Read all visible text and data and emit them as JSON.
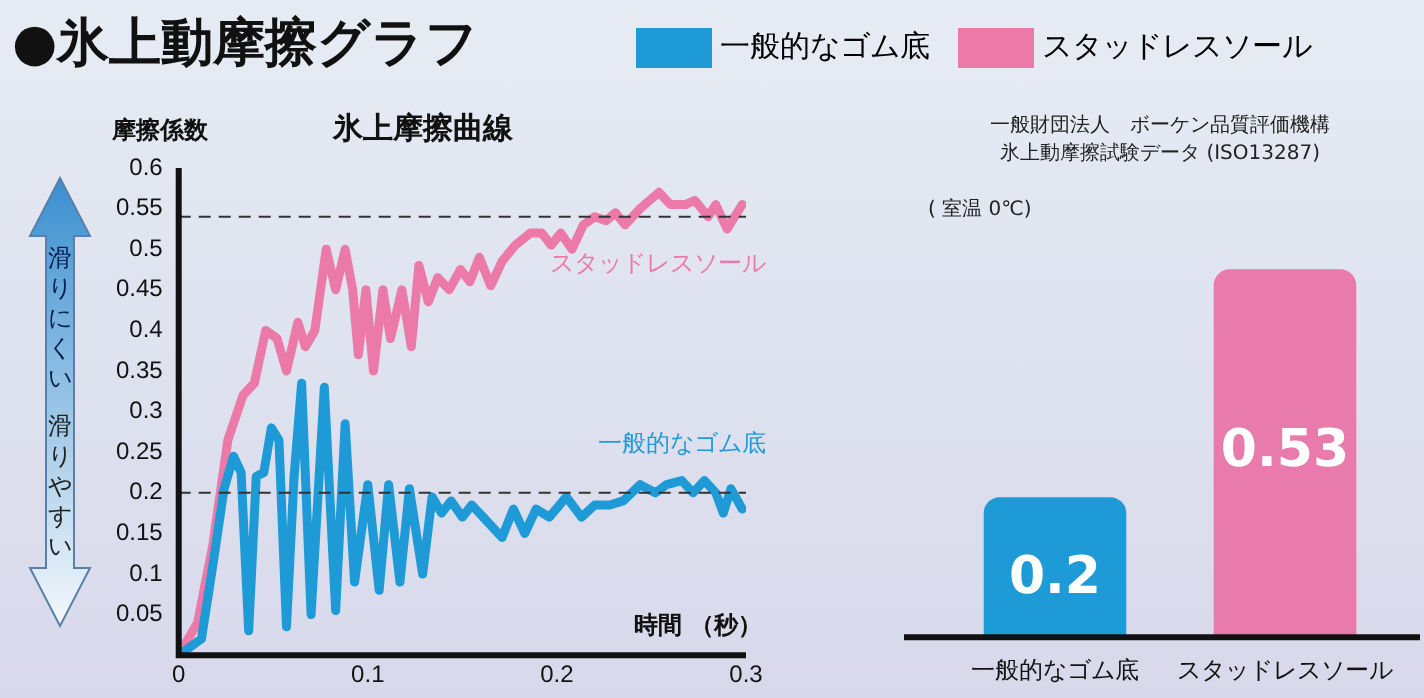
{
  "chart_data": [
    {
      "type": "line",
      "title": "●氷上動摩擦グラフ",
      "subtitle": "氷上摩擦曲線",
      "xlabel": "時間 （秒）",
      "ylabel": "摩擦係数",
      "x": [
        0,
        0.01,
        0.018,
        0.026,
        0.034,
        0.04,
        0.046,
        0.052,
        0.057,
        0.063,
        0.067,
        0.072,
        0.078,
        0.083,
        0.088,
        0.092,
        0.095,
        0.099,
        0.103,
        0.108,
        0.112,
        0.118,
        0.123,
        0.127,
        0.132,
        0.137,
        0.143,
        0.149,
        0.154,
        0.159,
        0.165,
        0.171,
        0.178,
        0.186,
        0.192,
        0.197,
        0.202,
        0.208,
        0.214,
        0.22,
        0.226,
        0.231,
        0.236,
        0.244,
        0.254,
        0.26,
        0.268,
        0.273,
        0.28,
        0.284,
        0.29,
        0.298
      ],
      "series": [
        {
          "name": "一般的なゴム底",
          "color": "#1e9bd7",
          "x": [
            0,
            0.012,
            0.018,
            0.024,
            0.029,
            0.033,
            0.037,
            0.041,
            0.045,
            0.049,
            0.053,
            0.057,
            0.061,
            0.065,
            0.07,
            0.077,
            0.083,
            0.088,
            0.093,
            0.1,
            0.106,
            0.111,
            0.117,
            0.122,
            0.129,
            0.134,
            0.139,
            0.144,
            0.15,
            0.155,
            0.161,
            0.171,
            0.177,
            0.183,
            0.189,
            0.196,
            0.205,
            0.213,
            0.22,
            0.228,
            0.235,
            0.244,
            0.252,
            0.258,
            0.266,
            0.272,
            0.278,
            0.284,
            0.288,
            0.292,
            0.298
          ],
          "values": [
            0,
            0.02,
            0.11,
            0.205,
            0.245,
            0.225,
            0.03,
            0.22,
            0.225,
            0.28,
            0.265,
            0.035,
            0.22,
            0.335,
            0.05,
            0.33,
            0.055,
            0.285,
            0.09,
            0.21,
            0.08,
            0.21,
            0.09,
            0.205,
            0.1,
            0.195,
            0.175,
            0.19,
            0.17,
            0.185,
            0.17,
            0.145,
            0.18,
            0.15,
            0.18,
            0.17,
            0.195,
            0.17,
            0.185,
            0.185,
            0.19,
            0.21,
            0.2,
            0.21,
            0.215,
            0.2,
            0.215,
            0.2,
            0.175,
            0.205,
            0.18
          ]
        },
        {
          "name": "スタッドレスソール",
          "color": "#ec7aa9",
          "values": [
            0,
            0.04,
            0.135,
            0.265,
            0.32,
            0.335,
            0.4,
            0.39,
            0.35,
            0.41,
            0.38,
            0.4,
            0.5,
            0.45,
            0.5,
            0.45,
            0.37,
            0.45,
            0.35,
            0.45,
            0.39,
            0.45,
            0.38,
            0.48,
            0.435,
            0.465,
            0.45,
            0.475,
            0.46,
            0.49,
            0.455,
            0.485,
            0.505,
            0.52,
            0.52,
            0.505,
            0.52,
            0.5,
            0.53,
            0.54,
            0.535,
            0.545,
            0.53,
            0.55,
            0.57,
            0.555,
            0.555,
            0.56,
            0.54,
            0.555,
            0.525,
            0.555
          ]
        }
      ],
      "xlim": [
        0,
        0.3
      ],
      "xticks": [
        0,
        0.1,
        0.2,
        0.3
      ],
      "ylim": [
        0,
        0.6
      ],
      "yticks": [
        0.05,
        0.1,
        0.15,
        0.2,
        0.25,
        0.3,
        0.35,
        0.4,
        0.45,
        0.5,
        0.55,
        0.6
      ],
      "ref_lines": [
        {
          "axis": "y",
          "value": 0.54,
          "line_style": "dashed"
        },
        {
          "axis": "y",
          "value": 0.2,
          "line_style": "dashed"
        }
      ],
      "annotations": [
        "滑りにくい",
        "滑りやすい"
      ],
      "grid": false,
      "legend": "top right",
      "marker": "none",
      "line_style": "solid"
    },
    {
      "type": "bar",
      "categories": [
        "一般的なゴム底",
        "スタッドレスソール"
      ],
      "values": [
        0.2,
        0.53
      ],
      "colors": [
        "#1e9bd7",
        "#e97aac"
      ],
      "data_labels": true,
      "tick_labels": "x",
      "annotations": [
        "一般財団法人　ボーケン品質評価機構",
        "氷上動摩擦試験データ (ISO13287)",
        "( 室温 0℃)"
      ]
    }
  ]
}
